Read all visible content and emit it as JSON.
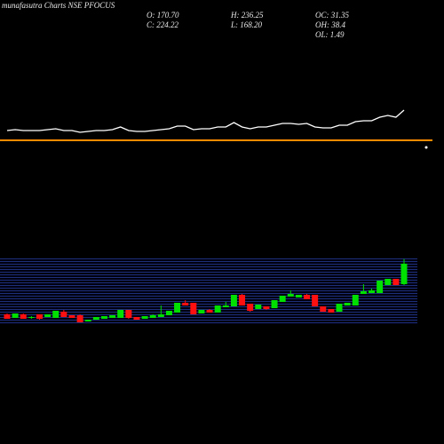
{
  "chart_data": {
    "type": "candlestick",
    "title": "munafasutra Charts NSE PFOCUS",
    "stats": [
      "O: 170.70",
      "H: 236.25",
      "OC: 31.35",
      "C: 224.22",
      "L: 168.20",
      "OH: 38.4",
      "OL: 1.49"
    ],
    "up_color": "#00e000",
    "down_color": "#ff1010",
    "ylim": [
      66,
      238
    ],
    "candles": [
      [
        91.6,
        93.9,
        79.9,
        79.9
      ],
      [
        82.3,
        93.9,
        82.3,
        93.9
      ],
      [
        91.6,
        93.9,
        79.9,
        79.9
      ],
      [
        82.3,
        86.9,
        79.9,
        84.6
      ],
      [
        91.6,
        91.6,
        77.6,
        79.9
      ],
      [
        84.6,
        91.6,
        84.6,
        91.6
      ],
      [
        82.3,
        100.9,
        82.3,
        100.9
      ],
      [
        98.5,
        103.2,
        84.6,
        84.6
      ],
      [
        89.2,
        89.2,
        82.3,
        82.3
      ],
      [
        89.2,
        91.6,
        70.6,
        70.6
      ],
      [
        73.0,
        77.6,
        73.0,
        77.6
      ],
      [
        77.6,
        84.6,
        77.6,
        84.6
      ],
      [
        79.9,
        86.9,
        79.9,
        86.9
      ],
      [
        82.3,
        89.2,
        82.3,
        89.2
      ],
      [
        82.3,
        103.2,
        82.3,
        103.2
      ],
      [
        103.2,
        103.2,
        79.9,
        82.3
      ],
      [
        84.6,
        84.6,
        77.6,
        77.6
      ],
      [
        79.9,
        86.9,
        79.9,
        86.9
      ],
      [
        82.3,
        91.6,
        82.3,
        89.2
      ],
      [
        84.6,
        114.8,
        84.6,
        91.6
      ],
      [
        89.2,
        100.9,
        89.2,
        100.9
      ],
      [
        96.2,
        121.8,
        96.2,
        121.8
      ],
      [
        121.8,
        128.7,
        114.8,
        114.8
      ],
      [
        121.8,
        121.8,
        91.6,
        91.6
      ],
      [
        93.9,
        103.2,
        93.9,
        103.2
      ],
      [
        103.2,
        105.5,
        96.2,
        96.2
      ],
      [
        96.2,
        114.8,
        96.2,
        114.8
      ],
      [
        110.2,
        124.1,
        110.2,
        114.8
      ],
      [
        112.5,
        142.7,
        112.5,
        142.7
      ],
      [
        142.7,
        145.0,
        114.8,
        114.8
      ],
      [
        119.5,
        119.5,
        98.5,
        100.9
      ],
      [
        105.5,
        117.1,
        105.5,
        117.1
      ],
      [
        112.5,
        112.5,
        103.2,
        105.5
      ],
      [
        107.8,
        128.7,
        107.8,
        128.7
      ],
      [
        124.1,
        140.4,
        124.1,
        140.4
      ],
      [
        138.0,
        154.3,
        138.0,
        145.0
      ],
      [
        135.7,
        142.7,
        135.7,
        142.7
      ],
      [
        142.7,
        145.0,
        131.1,
        131.1
      ],
      [
        142.7,
        142.7,
        112.5,
        112.5
      ],
      [
        112.5,
        112.5,
        98.5,
        98.5
      ],
      [
        105.5,
        105.5,
        96.2,
        96.2
      ],
      [
        98.5,
        119.5,
        98.5,
        119.5
      ],
      [
        114.8,
        121.8,
        114.8,
        121.8
      ],
      [
        114.8,
        142.7,
        114.8,
        142.7
      ],
      [
        145.0,
        170.6,
        145.0,
        152.0
      ],
      [
        147.3,
        159.0,
        147.3,
        154.3
      ],
      [
        147.3,
        179.9,
        147.3,
        179.9
      ],
      [
        168.3,
        184.5,
        168.3,
        184.5
      ],
      [
        184.5,
        184.5,
        168.3,
        168.3
      ],
      [
        170.7,
        236.25,
        168.2,
        224.22
      ]
    ],
    "line": {
      "color": "#ffffff",
      "ylim": [
        0,
        100
      ],
      "values": [
        32.5,
        35,
        32.5,
        32.5,
        32.5,
        35,
        37.5,
        32.5,
        32.5,
        27.5,
        30,
        32.5,
        32.5,
        35,
        42.5,
        32.5,
        30,
        30,
        32.5,
        35,
        37.5,
        45,
        45,
        35,
        37.5,
        37.5,
        42.5,
        42.5,
        55,
        42.5,
        37.5,
        42.5,
        42.5,
        47.5,
        52.5,
        52.5,
        50,
        52.5,
        42.5,
        40,
        40,
        47.5,
        47.5,
        57.5,
        60,
        60,
        70,
        75,
        70,
        90
      ]
    },
    "level": 5,
    "level_color": "#ff8c00"
  }
}
